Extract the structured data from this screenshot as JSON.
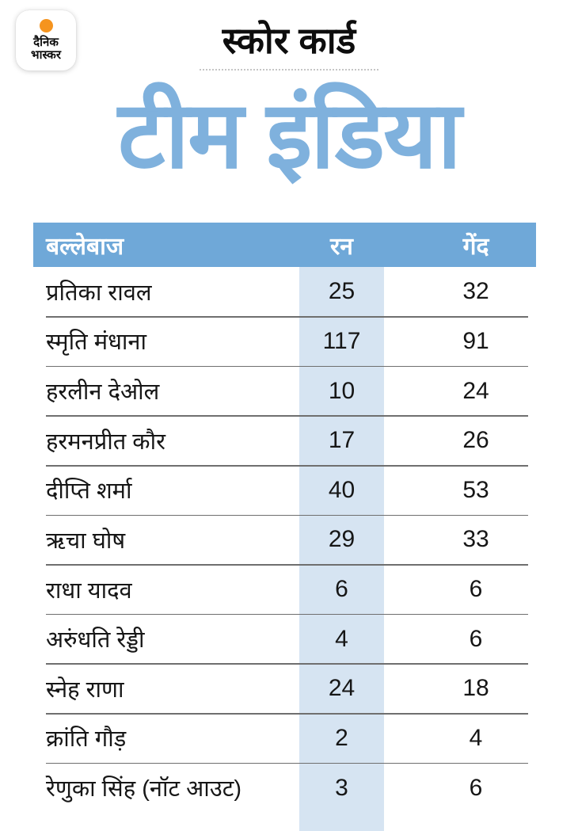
{
  "brand": {
    "logo_line1": "दैनिक",
    "logo_line2": "भास्कर",
    "logo_dot_color": "#F5941F"
  },
  "header": {
    "kicker": "स्कोर कार्ड",
    "title": "टीम इंडिया",
    "title_color": "#7FB1DD"
  },
  "table": {
    "header_bg": "#6FA8D8",
    "header_text_color": "#FFFFFF",
    "run_column_bg": "#D6E4F2",
    "divider_color": "#6F6F6F",
    "columns": [
      "बल्लेबाज",
      "रन",
      "गेंद"
    ],
    "rows": [
      {
        "batter": "प्रतिका रावल",
        "runs": "25",
        "balls": "32"
      },
      {
        "batter": "स्मृति मंधाना",
        "runs": "117",
        "balls": "91"
      },
      {
        "batter": "हरलीन देओल",
        "runs": "10",
        "balls": "24"
      },
      {
        "batter": "हरमनप्रीत कौर",
        "runs": "17",
        "balls": "26"
      },
      {
        "batter": "दीप्ति शर्मा",
        "runs": "40",
        "balls": "53"
      },
      {
        "batter": "ऋचा घोष",
        "runs": "29",
        "balls": "33"
      },
      {
        "batter": "राधा यादव",
        "runs": "6",
        "balls": "6"
      },
      {
        "batter": "अरुंधति रेड्डी",
        "runs": "4",
        "balls": "6"
      },
      {
        "batter": "स्नेह राणा",
        "runs": "24",
        "balls": "18"
      },
      {
        "batter": "क्रांति गौड़",
        "runs": "2",
        "balls": "4"
      },
      {
        "batter": "रेणुका सिंह (नॉट आउट)",
        "runs": "3",
        "balls": "6"
      }
    ]
  },
  "chart_data": {
    "type": "table",
    "title": "टीम इंडिया",
    "subtitle": "स्कोर कार्ड",
    "columns": [
      "बल्लेबाज",
      "रन",
      "गेंद"
    ],
    "categories": [
      "प्रतिका रावल",
      "स्मृति मंधाना",
      "हरलीन देओल",
      "हरमनप्रीत कौर",
      "दीप्ति शर्मा",
      "ऋचा घोष",
      "राधा यादव",
      "अरुंधति रेड्डी",
      "स्नेह राणा",
      "क्रांति गौड़",
      "रेणुका सिंह (नॉट आउट)"
    ],
    "series": [
      {
        "name": "रन",
        "values": [
          25,
          117,
          10,
          17,
          40,
          29,
          6,
          4,
          24,
          2,
          3
        ]
      },
      {
        "name": "गेंद",
        "values": [
          32,
          91,
          24,
          26,
          53,
          33,
          6,
          6,
          18,
          4,
          6
        ]
      }
    ]
  }
}
